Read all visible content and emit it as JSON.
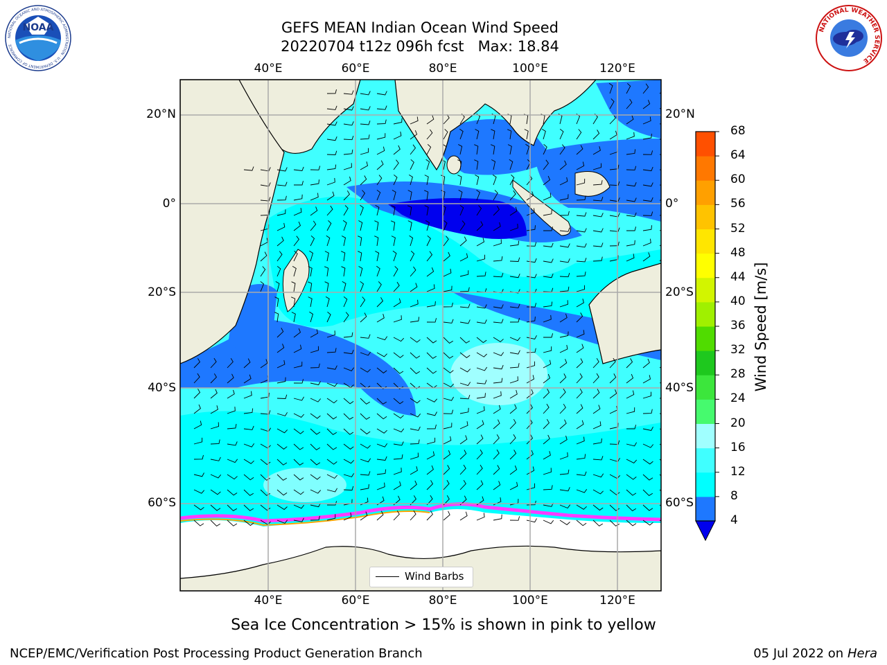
{
  "title": {
    "line1": "GEFS MEAN Indian Ocean Wind Speed",
    "line2": "20220704 t12z 096h fcst   Max: 18.84"
  },
  "map": {
    "lon_ticks": [
      "40°E",
      "60°E",
      "80°E",
      "100°E",
      "120°E"
    ],
    "lat_ticks": [
      "20°N",
      "0°",
      "20°S",
      "40°S",
      "60°S"
    ],
    "land_color": "#eeeedd",
    "grid": true,
    "legend": {
      "label": "Wind Barbs",
      "placement": "bottom-center"
    }
  },
  "colorbar": {
    "label": "Wind Speed [m/s]",
    "ticks": [
      "68",
      "64",
      "60",
      "56",
      "52",
      "48",
      "44",
      "40",
      "36",
      "32",
      "28",
      "24",
      "20",
      "16",
      "12",
      "8",
      "4"
    ],
    "colors": [
      "#0000ee",
      "#1e78ff",
      "#00ffff",
      "#40ffff",
      "#a0ffff",
      "#46fa6e",
      "#3ce63c",
      "#1ec81e",
      "#50dc00",
      "#a0f000",
      "#d2f500",
      "#ffff00",
      "#ffe600",
      "#ffc300",
      "#ffa000",
      "#ff7800",
      "#ff5000",
      "#ff2800",
      "#ff0000"
    ]
  },
  "subtitle": "Sea Ice Concentration > 15% is shown in pink to yellow",
  "footer": {
    "left": "NCEP/EMC/Verification Post Processing Product Generation Branch",
    "date": "05 Jul 2022 on ",
    "machine": "Hera"
  },
  "logos": {
    "noaa_text": "NOAA",
    "noaa_ring": "NATIONAL OCEANIC AND ATMOSPHERIC ADMINISTRATION · U.S. DEPARTMENT OF COMMERCE",
    "nws_ring": "NATIONAL WEATHER SERVICE"
  }
}
